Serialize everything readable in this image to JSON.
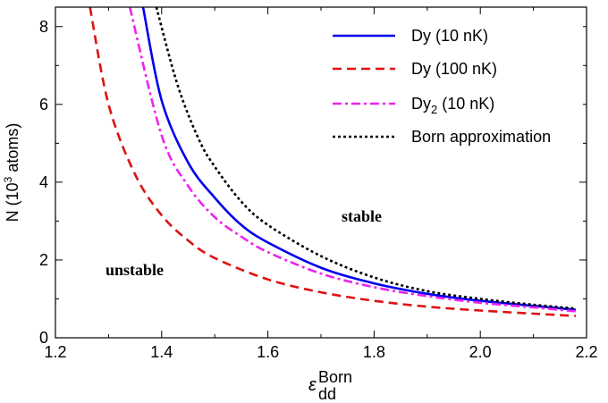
{
  "chart_data": {
    "type": "line",
    "xlabel_base": "ε",
    "xlabel_sup": "Born",
    "xlabel_sub": "dd",
    "ylabel_parts": [
      "N (10",
      "3",
      " atoms)"
    ],
    "xlim": [
      1.2,
      2.2
    ],
    "ylim": [
      0,
      8.5
    ],
    "x_ticks": [
      1.2,
      1.4,
      1.6,
      1.8,
      2.0,
      2.2
    ],
    "x_tick_labels": [
      "1.2",
      "1.4",
      "1.6",
      "1.8",
      "2.0",
      "2.2"
    ],
    "y_ticks": [
      0,
      2,
      4,
      6,
      8
    ],
    "y_tick_labels": [
      "0",
      "2",
      "4",
      "6",
      "8"
    ],
    "legend_position": "top-right",
    "annotations": [
      {
        "text": "stable",
        "x": 1.97,
        "y": 3.1
      },
      {
        "text": "unstable",
        "x": 1.33,
        "y": 1.7
      }
    ],
    "series": [
      {
        "name": "Dy (10 nK)",
        "color": "#0000ee",
        "dash": "solid",
        "x": [
          1.365,
          1.4,
          1.45,
          1.5,
          1.55,
          1.6,
          1.7,
          1.8,
          1.9,
          2.0,
          2.1,
          2.18
        ],
        "y": [
          8.5,
          6.1,
          4.5,
          3.6,
          2.9,
          2.45,
          1.8,
          1.4,
          1.13,
          0.95,
          0.82,
          0.72
        ]
      },
      {
        "name": "Dy (100 nK)",
        "color": "#dd1111",
        "dash": "dashed",
        "x": [
          1.265,
          1.3,
          1.35,
          1.4,
          1.45,
          1.5,
          1.6,
          1.7,
          1.8,
          1.9,
          2.0,
          2.1,
          2.18
        ],
        "y": [
          8.5,
          6.0,
          4.2,
          3.15,
          2.5,
          2.05,
          1.5,
          1.17,
          0.95,
          0.8,
          0.7,
          0.62,
          0.56
        ]
      },
      {
        "name": "Dy2 (10 nK)",
        "name_parts": [
          "Dy",
          "2",
          " (10 nK)"
        ],
        "color": "#ee22ee",
        "dash": "dashdot",
        "x": [
          1.34,
          1.4,
          1.45,
          1.5,
          1.55,
          1.6,
          1.7,
          1.8,
          1.9,
          2.0,
          2.1,
          2.18
        ],
        "y": [
          8.5,
          5.2,
          3.9,
          3.1,
          2.6,
          2.2,
          1.65,
          1.3,
          1.07,
          0.9,
          0.78,
          0.68
        ]
      },
      {
        "name": "Born approximation",
        "color": "#000000",
        "dash": "dotted",
        "x": [
          1.39,
          1.43,
          1.47,
          1.5,
          1.55,
          1.6,
          1.7,
          1.8,
          1.9,
          2.0,
          2.1,
          2.18
        ],
        "y": [
          8.5,
          6.5,
          5.1,
          4.4,
          3.5,
          2.9,
          2.1,
          1.55,
          1.2,
          1.0,
          0.85,
          0.75
        ]
      }
    ]
  }
}
